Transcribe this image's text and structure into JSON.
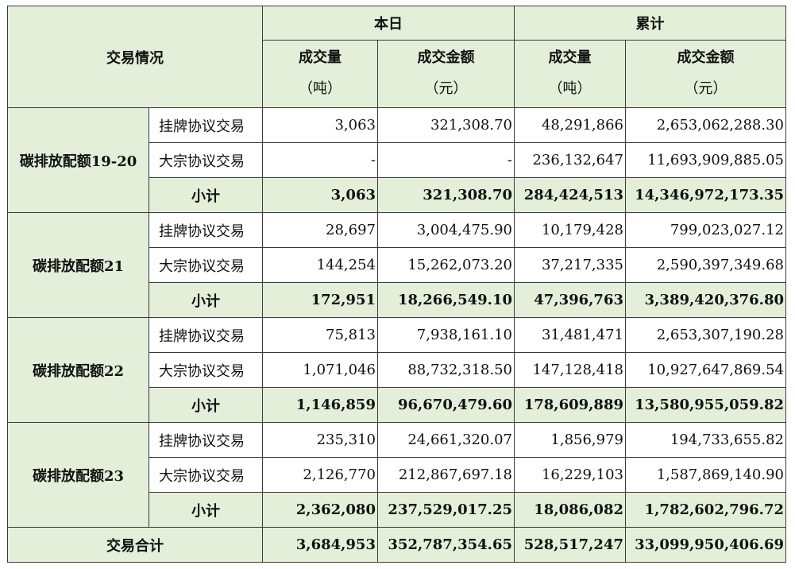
{
  "header": {
    "section_label": "交易情况",
    "today": "本日",
    "cumulative": "累计",
    "columns": [
      {
        "label": "成交量",
        "unit": "（吨）"
      },
      {
        "label": "成交金额",
        "unit": "（元）"
      },
      {
        "label": "成交量",
        "unit": "（吨）"
      },
      {
        "label": "成交金额",
        "unit": "（元）"
      }
    ]
  },
  "groups": [
    {
      "name": "碳排放配额19-20",
      "rows": [
        {
          "label": "挂牌协议交易",
          "values": [
            "3,063",
            "321,308.70",
            "48,291,866",
            "2,653,062,288.30"
          ]
        },
        {
          "label": "大宗协议交易",
          "values": [
            "-",
            "-",
            "236,132,647",
            "11,693,909,885.05"
          ]
        },
        {
          "label": "小计",
          "values": [
            "3,063",
            "321,308.70",
            "284,424,513",
            "14,346,972,173.35"
          ]
        }
      ]
    },
    {
      "name": "碳排放配额21",
      "rows": [
        {
          "label": "挂牌协议交易",
          "values": [
            "28,697",
            "3,004,475.90",
            "10,179,428",
            "799,023,027.12"
          ]
        },
        {
          "label": "大宗协议交易",
          "values": [
            "144,254",
            "15,262,073.20",
            "37,217,335",
            "2,590,397,349.68"
          ]
        },
        {
          "label": "小计",
          "values": [
            "172,951",
            "18,266,549.10",
            "47,396,763",
            "3,389,420,376.80"
          ]
        }
      ]
    },
    {
      "name": "碳排放配额22",
      "rows": [
        {
          "label": "挂牌协议交易",
          "values": [
            "75,813",
            "7,938,161.10",
            "31,481,471",
            "2,653,307,190.28"
          ]
        },
        {
          "label": "大宗协议交易",
          "values": [
            "1,071,046",
            "88,732,318.50",
            "147,128,418",
            "10,927,647,869.54"
          ]
        },
        {
          "label": "小计",
          "values": [
            "1,146,859",
            "96,670,479.60",
            "178,609,889",
            "13,580,955,059.82"
          ]
        }
      ]
    },
    {
      "name": "碳排放配额23",
      "rows": [
        {
          "label": "挂牌协议交易",
          "values": [
            "235,310",
            "24,661,320.07",
            "1,856,979",
            "194,733,655.82"
          ]
        },
        {
          "label": "大宗协议交易",
          "values": [
            "2,126,770",
            "212,867,697.18",
            "16,229,103",
            "1,587,869,140.90"
          ]
        },
        {
          "label": "小计",
          "values": [
            "2,362,080",
            "237,529,017.25",
            "18,086,082",
            "1,782,602,796.72"
          ]
        }
      ]
    }
  ],
  "total": {
    "label": "交易合计",
    "values": [
      "3,684,953",
      "352,787,354.65",
      "528,517,247",
      "33,099,950,406.69"
    ]
  },
  "colors": {
    "header_bg": "#e3efd9",
    "border": "#3a3a3a"
  }
}
